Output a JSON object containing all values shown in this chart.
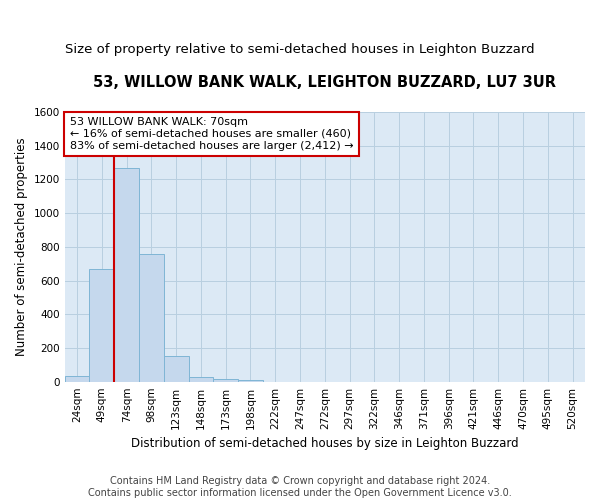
{
  "title": "53, WILLOW BANK WALK, LEIGHTON BUZZARD, LU7 3UR",
  "subtitle": "Size of property relative to semi-detached houses in Leighton Buzzard",
  "xlabel": "Distribution of semi-detached houses by size in Leighton Buzzard",
  "ylabel": "Number of semi-detached properties",
  "footer_line1": "Contains HM Land Registry data © Crown copyright and database right 2024.",
  "footer_line2": "Contains public sector information licensed under the Open Government Licence v3.0.",
  "categories": [
    "24sqm",
    "49sqm",
    "74sqm",
    "98sqm",
    "123sqm",
    "148sqm",
    "173sqm",
    "198sqm",
    "222sqm",
    "247sqm",
    "272sqm",
    "297sqm",
    "322sqm",
    "346sqm",
    "371sqm",
    "396sqm",
    "421sqm",
    "446sqm",
    "470sqm",
    "495sqm",
    "520sqm"
  ],
  "values": [
    35,
    670,
    1270,
    760,
    150,
    30,
    15,
    10,
    0,
    0,
    0,
    0,
    0,
    0,
    0,
    0,
    0,
    0,
    0,
    0,
    0
  ],
  "bar_color": "#c5d8ed",
  "bar_edge_color": "#7fb5d5",
  "red_line_x": 2,
  "annotation_text_line1": "53 WILLOW BANK WALK: 70sqm",
  "annotation_text_line2": "← 16% of semi-detached houses are smaller (460)",
  "annotation_text_line3": "83% of semi-detached houses are larger (2,412) →",
  "annotation_box_facecolor": "#ffffff",
  "annotation_box_edgecolor": "#cc0000",
  "red_line_color": "#cc0000",
  "ylim": [
    0,
    1600
  ],
  "yticks": [
    0,
    200,
    400,
    600,
    800,
    1000,
    1200,
    1400,
    1600
  ],
  "bg_color": "#dce9f5",
  "fig_bg_color": "#ffffff",
  "grid_color": "#b8cfe0",
  "title_fontsize": 10.5,
  "subtitle_fontsize": 9.5,
  "axis_label_fontsize": 8.5,
  "tick_fontsize": 7.5,
  "annotation_fontsize": 8,
  "footer_fontsize": 7
}
